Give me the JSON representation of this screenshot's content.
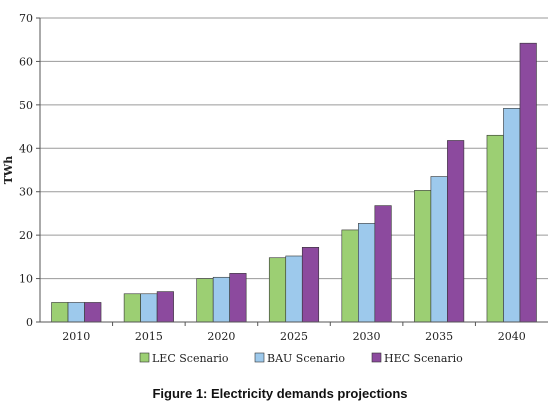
{
  "chart_data": {
    "type": "bar",
    "categories": [
      "2010",
      "2015",
      "2020",
      "2025",
      "2030",
      "2035",
      "2040"
    ],
    "series": [
      {
        "name": "LEC Scenario",
        "color": "#9ccf73",
        "values": [
          4.5,
          6.5,
          10.0,
          14.8,
          21.2,
          30.3,
          43.0
        ]
      },
      {
        "name": "BAU Scenario",
        "color": "#9dc9ec",
        "values": [
          4.5,
          6.5,
          10.3,
          15.2,
          22.7,
          33.5,
          49.2
        ]
      },
      {
        "name": "HEC Scenario",
        "color": "#8c4a9e",
        "values": [
          4.5,
          7.0,
          11.2,
          17.2,
          26.8,
          41.8,
          64.2
        ]
      }
    ],
    "ylabel": "TWh",
    "xlabel": "",
    "ylim": [
      0,
      70
    ],
    "yticks": [
      0,
      10,
      20,
      30,
      40,
      50,
      60,
      70
    ],
    "grid": true,
    "legend_position": "bottom"
  },
  "caption": "Figure 1: Electricity demands projections"
}
